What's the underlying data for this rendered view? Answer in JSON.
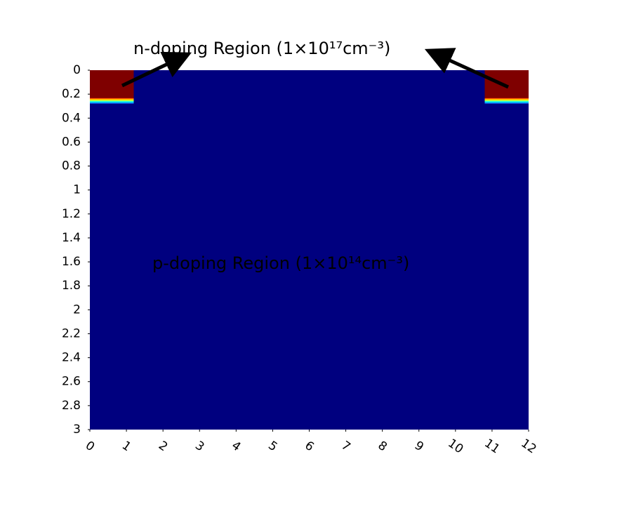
{
  "chart_data": {
    "type": "region",
    "background_color": "#00007f",
    "region_color": "#7f0000",
    "annotation_color": "#f04a2a",
    "annotations": [
      "n-doping Region (1×10¹⁷cm⁻³)",
      "p-doping Region (1×10¹⁴cm⁻³)"
    ],
    "regions": [
      {
        "x": [
          0,
          1.2
        ],
        "y": [
          0,
          0.28
        ]
      },
      {
        "x": [
          10.8,
          12
        ],
        "y": [
          0,
          0.28
        ]
      }
    ],
    "xlim": [
      0,
      12
    ],
    "xticks": [
      0,
      1,
      2,
      3,
      4,
      5,
      6,
      7,
      8,
      9,
      10,
      11,
      12
    ],
    "ylim": [
      0,
      3
    ],
    "yticks": [
      0,
      0.2,
      0.4,
      0.6,
      0.8,
      1,
      1.2,
      1.4,
      1.6,
      1.8,
      2,
      2.2,
      2.4,
      2.6,
      2.8,
      3
    ],
    "y_inverted": true
  }
}
